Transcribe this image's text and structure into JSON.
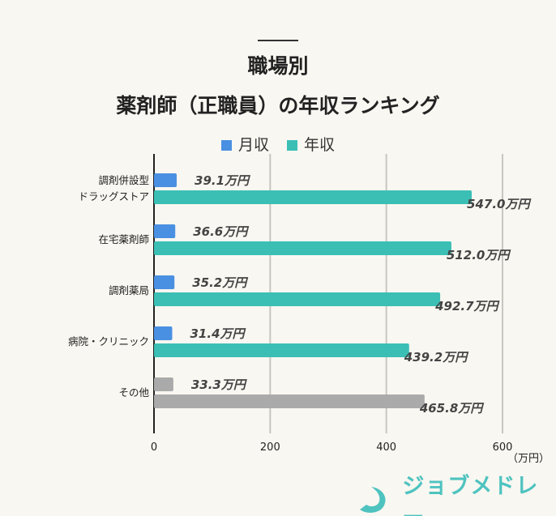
{
  "chart_data": {
    "type": "bar",
    "orientation": "horizontal",
    "title": [
      "職場別",
      "薬剤師（正職員）の年収ランキング"
    ],
    "categories": [
      [
        "調剤併設型",
        "ドラッグストア"
      ],
      [
        "在宅薬剤師"
      ],
      [
        "調剤薬局"
      ],
      [
        "病院・クリニック"
      ],
      [
        "その他"
      ]
    ],
    "series": [
      {
        "name": "月収",
        "values": [
          39.1,
          36.6,
          35.2,
          31.4,
          33.3
        ],
        "labels": [
          "39.1万円",
          "36.6万円",
          "35.2万円",
          "31.4万円",
          "33.3万円"
        ]
      },
      {
        "name": "年収",
        "values": [
          547.0,
          512.0,
          492.7,
          439.2,
          465.8
        ],
        "labels": [
          "547.0万円",
          "512.0万円",
          "492.7万円",
          "439.2万円",
          "465.8万円"
        ]
      }
    ],
    "colors": {
      "月収": "#4a90e2",
      "年収": "#3bbfb5",
      "その他": "#aaaaaa"
    },
    "xlim": [
      0,
      600
    ],
    "xticks": [
      "0",
      "200",
      "400",
      "600"
    ],
    "xunit": "（万円）",
    "grid": true,
    "legend": "top"
  },
  "logo": {
    "text": "ジョブメドレー",
    "color": "#4ec3c0"
  }
}
